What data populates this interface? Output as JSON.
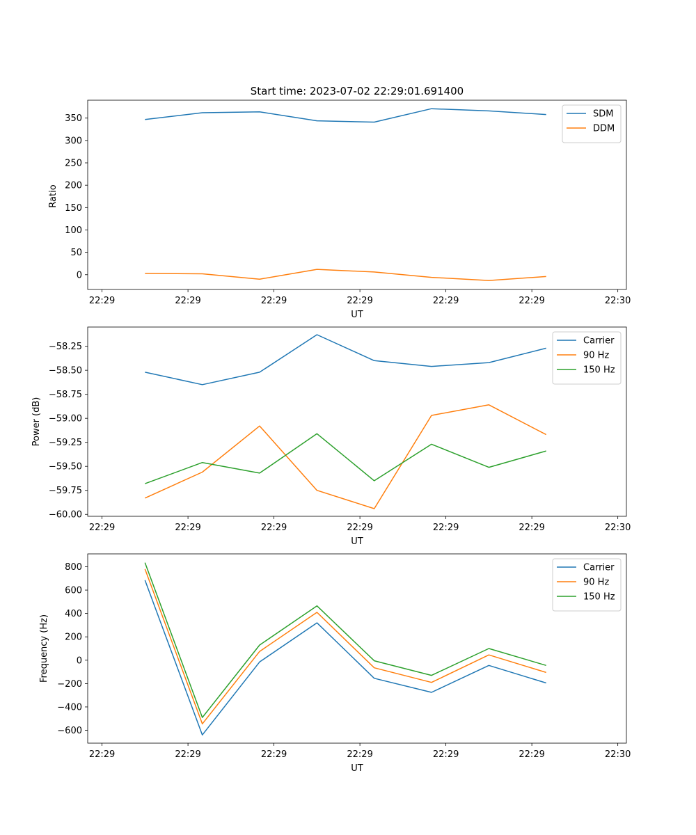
{
  "chart_data": [
    {
      "type": "line",
      "title": "Start time: 2023-07-02 22:29:01.691400",
      "xlabel": "UT",
      "ylabel": "Ratio",
      "xlim": [
        0,
        9.4
      ],
      "ylim": [
        -33,
        390
      ],
      "x": [
        1,
        2,
        3,
        4,
        5,
        6,
        7,
        8
      ],
      "xticks": [
        0.25,
        1.75,
        3.25,
        4.75,
        6.25,
        7.75,
        9.25
      ],
      "xtick_labels": [
        "22:29",
        "22:29",
        "22:29",
        "22:29",
        "22:29",
        "22:29",
        "22:30"
      ],
      "yticks": [
        0,
        50,
        100,
        150,
        200,
        250,
        300,
        350
      ],
      "ytick_labels": [
        "0",
        "50",
        "100",
        "150",
        "200",
        "250",
        "300",
        "350"
      ],
      "legend_position": "upper right",
      "series": [
        {
          "name": "SDM",
          "color": "#1f77b4",
          "values": [
            347,
            362,
            364,
            344,
            341,
            371,
            366,
            358
          ]
        },
        {
          "name": "DDM",
          "color": "#ff7f0e",
          "values": [
            3,
            2,
            -10,
            12,
            6,
            -6,
            -13,
            -4
          ]
        }
      ]
    },
    {
      "type": "line",
      "title": "",
      "xlabel": "UT",
      "ylabel": "Power (dB)",
      "xlim": [
        0,
        9.4
      ],
      "ylim": [
        -60.02,
        -58.05
      ],
      "x": [
        1,
        2,
        3,
        4,
        5,
        6,
        7,
        8
      ],
      "xticks": [
        0.25,
        1.75,
        3.25,
        4.75,
        6.25,
        7.75,
        9.25
      ],
      "xtick_labels": [
        "22:29",
        "22:29",
        "22:29",
        "22:29",
        "22:29",
        "22:29",
        "22:30"
      ],
      "yticks": [
        -60.0,
        -59.75,
        -59.5,
        -59.25,
        -59.0,
        -58.75,
        -58.5,
        -58.25
      ],
      "ytick_labels": [
        "−60.00",
        "−59.75",
        "−59.50",
        "−59.25",
        "−59.00",
        "−58.75",
        "−58.50",
        "−58.25"
      ],
      "legend_position": "upper right",
      "series": [
        {
          "name": "Carrier",
          "color": "#1f77b4",
          "values": [
            -58.52,
            -58.65,
            -58.52,
            -58.13,
            -58.4,
            -58.46,
            -58.42,
            -58.27
          ]
        },
        {
          "name": "90 Hz",
          "color": "#ff7f0e",
          "values": [
            -59.83,
            -59.56,
            -59.08,
            -59.75,
            -59.94,
            -58.97,
            -58.86,
            -59.17
          ]
        },
        {
          "name": "150 Hz",
          "color": "#2ca02c",
          "values": [
            -59.68,
            -59.46,
            -59.57,
            -59.16,
            -59.65,
            -59.27,
            -59.51,
            -59.34
          ]
        }
      ]
    },
    {
      "type": "line",
      "title": "",
      "xlabel": "UT",
      "ylabel": "Frequency (Hz)",
      "xlim": [
        0,
        9.4
      ],
      "ylim": [
        -710,
        910
      ],
      "x": [
        1,
        2,
        3,
        4,
        5,
        6,
        7,
        8
      ],
      "xticks": [
        0.25,
        1.75,
        3.25,
        4.75,
        6.25,
        7.75,
        9.25
      ],
      "xtick_labels": [
        "22:29",
        "22:29",
        "22:29",
        "22:29",
        "22:29",
        "22:29",
        "22:30"
      ],
      "yticks": [
        -600,
        -400,
        -200,
        0,
        200,
        400,
        600,
        800
      ],
      "ytick_labels": [
        "−600",
        "−400",
        "−200",
        "0",
        "200",
        "400",
        "600",
        "800"
      ],
      "legend_position": "upper right",
      "series": [
        {
          "name": "Carrier",
          "color": "#1f77b4",
          "values": [
            685,
            -640,
            -15,
            320,
            -155,
            -275,
            -45,
            -195
          ]
        },
        {
          "name": "90 Hz",
          "color": "#ff7f0e",
          "values": [
            780,
            -545,
            75,
            410,
            -65,
            -190,
            45,
            -105
          ]
        },
        {
          "name": "150 Hz",
          "color": "#2ca02c",
          "values": [
            835,
            -490,
            130,
            465,
            -5,
            -130,
            100,
            -45
          ]
        }
      ]
    }
  ]
}
